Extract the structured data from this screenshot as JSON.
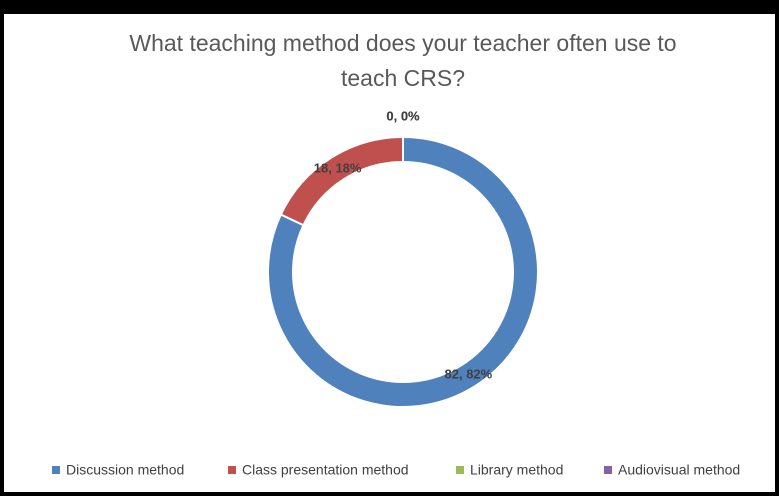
{
  "chart_data": {
    "type": "donut",
    "title": [
      "What teaching method does your teacher often use to",
      "teach CRS?"
    ],
    "categories": [
      "Discussion method",
      "Class presentation method",
      "Library method",
      "Audiovisual method"
    ],
    "values": [
      82,
      18,
      0,
      0
    ],
    "value_labels": [
      "82, 82%",
      "18, 18%",
      "0, 0%",
      "0, 0%"
    ],
    "colors": [
      "#4f81bd",
      "#c0504d",
      "#9bbb59",
      "#8064a2"
    ],
    "legend": "bottom"
  }
}
